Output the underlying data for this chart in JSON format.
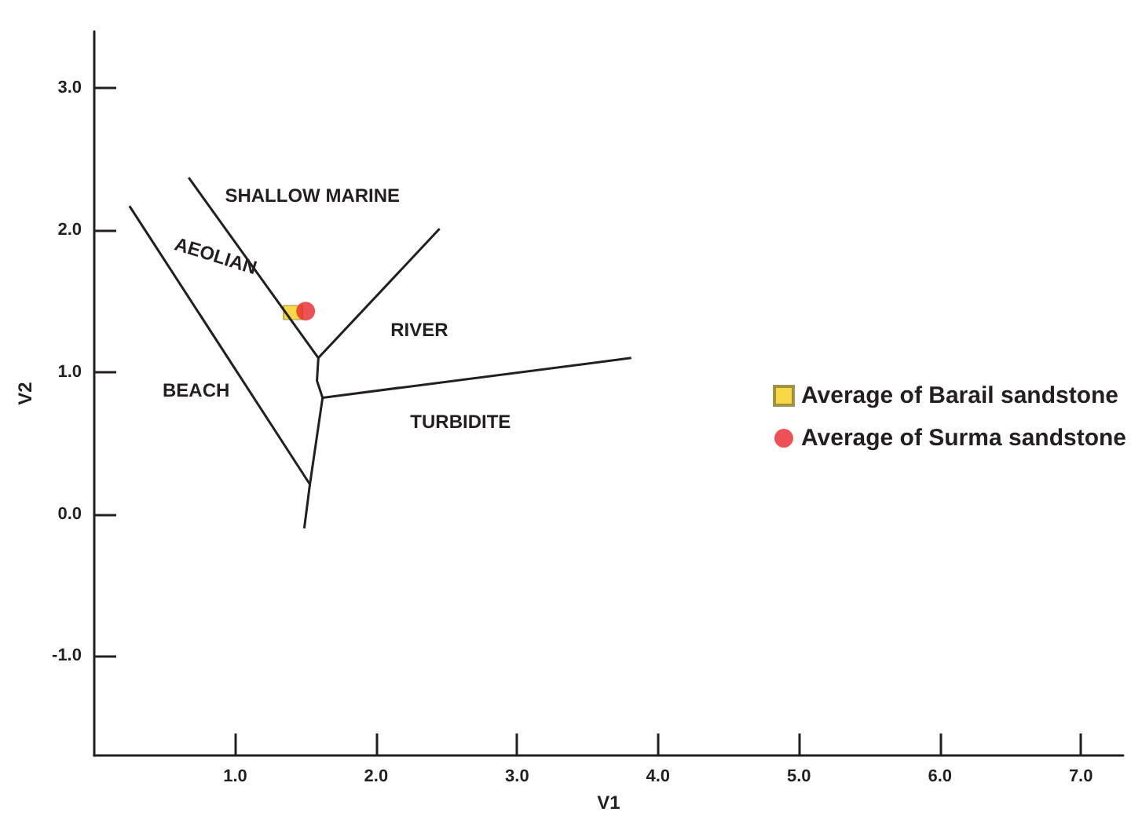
{
  "chart_data": {
    "type": "scatter",
    "xlabel": "V1",
    "ylabel": "V2",
    "xlim": [
      0,
      7.3
    ],
    "ylim": [
      -1.7,
      3.4
    ],
    "xticks": [
      {
        "value": 1,
        "label": "1.0"
      },
      {
        "value": 2,
        "label": "2.0"
      },
      {
        "value": 3,
        "label": "3.0"
      },
      {
        "value": 4,
        "label": "4.0"
      },
      {
        "value": 5,
        "label": "5.0"
      },
      {
        "value": 6,
        "label": "6.0"
      },
      {
        "value": 7,
        "label": "7.0"
      }
    ],
    "yticks": [
      {
        "value": -1,
        "label": "-1.0"
      },
      {
        "value": 0,
        "label": "0.0"
      },
      {
        "value": 1,
        "label": "1.0"
      },
      {
        "value": 2,
        "label": "2.0"
      },
      {
        "value": 3,
        "label": "3.0"
      }
    ],
    "grid": false,
    "legend": "right",
    "series": [
      {
        "type": "line",
        "color": "#231f20",
        "marker": "none",
        "x": [
          0.67,
          1.59,
          1.58,
          1.62,
          1.53,
          1.49
        ],
        "values": [
          2.37,
          1.1,
          0.94,
          0.82,
          0.21,
          -0.1
        ]
      },
      {
        "type": "line",
        "color": "#231f20",
        "marker": "none",
        "x": [
          1.59,
          2.45
        ],
        "values": [
          1.1,
          2.01
        ]
      },
      {
        "type": "line",
        "color": "#231f20",
        "marker": "none",
        "x": [
          1.62,
          3.81
        ],
        "values": [
          0.82,
          1.1
        ]
      },
      {
        "type": "line",
        "color": "#231f20",
        "marker": "none",
        "x": [
          0.25,
          1.53
        ],
        "values": [
          2.17,
          0.21
        ]
      },
      {
        "name": "Average of Barail sandstone",
        "color": "#f5d01a",
        "marker": "square",
        "x": [
          1.41
        ],
        "values": [
          1.42
        ]
      },
      {
        "name": "Average of Surma sandstone",
        "color": "#e8262c",
        "marker": "circle",
        "x": [
          1.5
        ],
        "values": [
          1.43
        ]
      }
    ],
    "annotations": [
      "SHALLOW MARINE",
      "AEOLIAN",
      "RIVER",
      "BEACH",
      "TURBIDITE"
    ]
  }
}
